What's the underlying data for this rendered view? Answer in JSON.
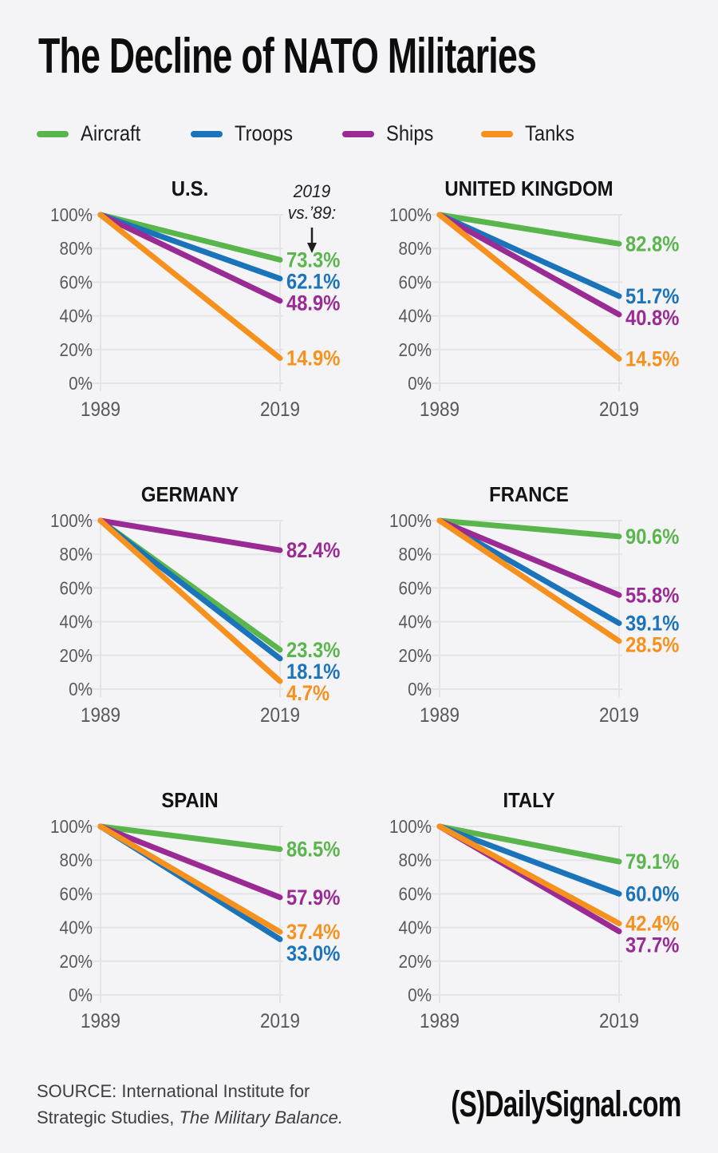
{
  "page": {
    "title": "The Decline of NATO Militaries",
    "background": "#f4f4f6"
  },
  "colors": {
    "Aircraft": "#5ab64c",
    "Troops": "#1b74ba",
    "Ships": "#9a2b95",
    "Tanks": "#f6911e"
  },
  "legend": {
    "items": [
      {
        "label": "Aircraft",
        "color": "#5ab64c"
      },
      {
        "label": "Troops",
        "color": "#1b74ba"
      },
      {
        "label": "Ships",
        "color": "#9a2b95"
      },
      {
        "label": "Tanks",
        "color": "#f6911e"
      }
    ]
  },
  "axis": {
    "y_ticks": [
      "100%",
      "80%",
      "60%",
      "40%",
      "20%",
      "0%"
    ],
    "x_ticks": [
      "1989",
      "2019"
    ]
  },
  "chart_data": [
    {
      "type": "line",
      "title": "U.S.",
      "x": [
        "1989",
        "2019"
      ],
      "ylim": [
        0,
        100
      ],
      "grid": true,
      "annotation": {
        "lines": [
          "2019",
          "vs.’89:"
        ]
      },
      "series": [
        {
          "name": "Aircraft",
          "values": [
            100,
            73.3
          ],
          "end_label": "73.3%"
        },
        {
          "name": "Troops",
          "values": [
            100,
            62.1
          ],
          "end_label": "62.1%"
        },
        {
          "name": "Ships",
          "values": [
            100,
            48.9
          ],
          "end_label": "48.9%"
        },
        {
          "name": "Tanks",
          "values": [
            100,
            14.9
          ],
          "end_label": "14.9%"
        }
      ]
    },
    {
      "type": "line",
      "title": "UNITED KINGDOM",
      "x": [
        "1989",
        "2019"
      ],
      "ylim": [
        0,
        100
      ],
      "grid": true,
      "series": [
        {
          "name": "Aircraft",
          "values": [
            100,
            82.8
          ],
          "end_label": "82.8%"
        },
        {
          "name": "Troops",
          "values": [
            100,
            51.7
          ],
          "end_label": "51.7%"
        },
        {
          "name": "Ships",
          "values": [
            100,
            40.8
          ],
          "end_label": "40.8%"
        },
        {
          "name": "Tanks",
          "values": [
            100,
            14.5
          ],
          "end_label": "14.5%"
        }
      ]
    },
    {
      "type": "line",
      "title": "GERMANY",
      "x": [
        "1989",
        "2019"
      ],
      "ylim": [
        0,
        100
      ],
      "grid": true,
      "series": [
        {
          "name": "Aircraft",
          "values": [
            100,
            23.3
          ],
          "end_label": "23.3%"
        },
        {
          "name": "Troops",
          "values": [
            100,
            18.1
          ],
          "end_label": "18.1%"
        },
        {
          "name": "Ships",
          "values": [
            100,
            82.4
          ],
          "end_label": "82.4%"
        },
        {
          "name": "Tanks",
          "values": [
            100,
            4.7
          ],
          "end_label": "4.7%"
        }
      ]
    },
    {
      "type": "line",
      "title": "FRANCE",
      "x": [
        "1989",
        "2019"
      ],
      "ylim": [
        0,
        100
      ],
      "grid": true,
      "series": [
        {
          "name": "Aircraft",
          "values": [
            100,
            90.6
          ],
          "end_label": "90.6%"
        },
        {
          "name": "Troops",
          "values": [
            100,
            39.1
          ],
          "end_label": "39.1%"
        },
        {
          "name": "Ships",
          "values": [
            100,
            55.8
          ],
          "end_label": "55.8%"
        },
        {
          "name": "Tanks",
          "values": [
            100,
            28.5
          ],
          "end_label": "28.5%"
        }
      ]
    },
    {
      "type": "line",
      "title": "SPAIN",
      "x": [
        "1989",
        "2019"
      ],
      "ylim": [
        0,
        100
      ],
      "grid": true,
      "series": [
        {
          "name": "Aircraft",
          "values": [
            100,
            86.5
          ],
          "end_label": "86.5%"
        },
        {
          "name": "Troops",
          "values": [
            100,
            33.0
          ],
          "end_label": "33.0%"
        },
        {
          "name": "Ships",
          "values": [
            100,
            57.9
          ],
          "end_label": "57.9%"
        },
        {
          "name": "Tanks",
          "values": [
            100,
            37.4
          ],
          "end_label": "37.4%"
        }
      ]
    },
    {
      "type": "line",
      "title": "ITALY",
      "x": [
        "1989",
        "2019"
      ],
      "ylim": [
        0,
        100
      ],
      "grid": true,
      "series": [
        {
          "name": "Aircraft",
          "values": [
            100,
            79.1
          ],
          "end_label": "79.1%"
        },
        {
          "name": "Troops",
          "values": [
            100,
            60.0
          ],
          "end_label": "60.0%"
        },
        {
          "name": "Ships",
          "values": [
            100,
            37.7
          ],
          "end_label": "37.7%"
        },
        {
          "name": "Tanks",
          "values": [
            100,
            42.4
          ],
          "end_label": "42.4%"
        }
      ]
    }
  ],
  "footer": {
    "source_line1": "SOURCE: International Institute for",
    "source_line2_normal": "Strategic Studies, ",
    "source_line2_italic": "The Military Balance.",
    "logo_mark": "(S)",
    "logo_text": "DailySignal.com"
  }
}
